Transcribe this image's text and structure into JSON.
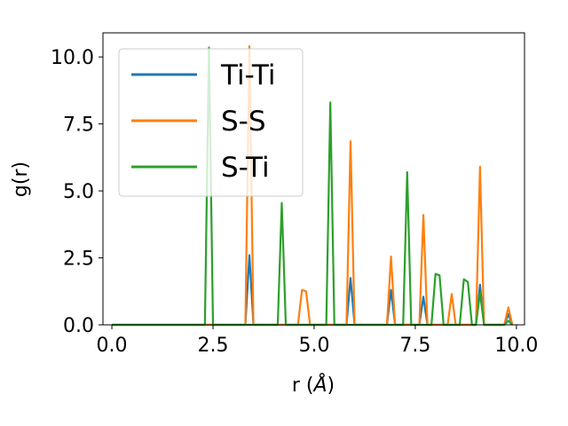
{
  "chart_data": {
    "type": "line",
    "xlabel": "r (Å)",
    "xlabel_prefix": "r (",
    "xlabel_unit": "Å",
    "xlabel_suffix": ")",
    "ylabel": "g(r)",
    "xlim": [
      -0.22,
      10.2
    ],
    "ylim": [
      0,
      10.9
    ],
    "x_ticks": [
      0.0,
      2.5,
      5.0,
      7.5,
      10.0
    ],
    "x_tick_labels": [
      "0.0",
      "2.5",
      "5.0",
      "7.5",
      "10.0"
    ],
    "y_ticks": [
      0.0,
      2.5,
      5.0,
      7.5,
      10.0
    ],
    "y_tick_labels": [
      "0.0",
      "2.5",
      "5.0",
      "7.5",
      "10.0"
    ],
    "grid": false,
    "legend": "upper-left",
    "series": [
      {
        "name": "Ti-Ti",
        "color": "#1f77b4",
        "points": [
          [
            0,
            0
          ],
          [
            3.3,
            0
          ],
          [
            3.4,
            2.6
          ],
          [
            3.5,
            0
          ],
          [
            5.8,
            0
          ],
          [
            5.9,
            1.75
          ],
          [
            6.0,
            0
          ],
          [
            6.8,
            0
          ],
          [
            6.9,
            1.3
          ],
          [
            7.0,
            0
          ],
          [
            7.6,
            0
          ],
          [
            7.7,
            1.05
          ],
          [
            7.8,
            0
          ],
          [
            9.0,
            0
          ],
          [
            9.1,
            1.5
          ],
          [
            9.2,
            0
          ],
          [
            9.7,
            0
          ],
          [
            9.8,
            0.4
          ],
          [
            9.9,
            0
          ]
        ]
      },
      {
        "name": "S-S",
        "color": "#ff7f0e",
        "points": [
          [
            0,
            0
          ],
          [
            3.3,
            0
          ],
          [
            3.4,
            10.4
          ],
          [
            3.5,
            0
          ],
          [
            4.6,
            0
          ],
          [
            4.7,
            1.3
          ],
          [
            4.8,
            1.25
          ],
          [
            4.9,
            0
          ],
          [
            5.8,
            0
          ],
          [
            5.9,
            6.85
          ],
          [
            6.0,
            0
          ],
          [
            6.8,
            0
          ],
          [
            6.9,
            2.55
          ],
          [
            7.0,
            0
          ],
          [
            7.6,
            0
          ],
          [
            7.7,
            4.1
          ],
          [
            7.8,
            0
          ],
          [
            8.3,
            0
          ],
          [
            8.4,
            1.15
          ],
          [
            8.5,
            0
          ],
          [
            9.0,
            0
          ],
          [
            9.1,
            5.9
          ],
          [
            9.2,
            0
          ],
          [
            9.7,
            0
          ],
          [
            9.8,
            0.65
          ],
          [
            9.9,
            0
          ]
        ]
      },
      {
        "name": "S-Ti",
        "color": "#2ca02c",
        "points": [
          [
            0,
            0
          ],
          [
            2.3,
            0
          ],
          [
            2.4,
            10.35
          ],
          [
            2.5,
            0
          ],
          [
            4.1,
            0
          ],
          [
            4.2,
            4.55
          ],
          [
            4.3,
            0
          ],
          [
            5.3,
            0
          ],
          [
            5.4,
            8.3
          ],
          [
            5.5,
            0
          ],
          [
            7.2,
            0
          ],
          [
            7.3,
            5.7
          ],
          [
            7.4,
            0
          ],
          [
            7.9,
            0
          ],
          [
            8.0,
            1.9
          ],
          [
            8.1,
            1.85
          ],
          [
            8.2,
            0
          ],
          [
            8.6,
            0
          ],
          [
            8.7,
            1.7
          ],
          [
            8.8,
            1.6
          ],
          [
            8.9,
            0
          ],
          [
            9.0,
            0
          ],
          [
            9.1,
            1.2
          ],
          [
            9.2,
            0
          ],
          [
            9.7,
            0
          ],
          [
            9.8,
            0.15
          ],
          [
            9.9,
            0
          ]
        ]
      }
    ]
  }
}
